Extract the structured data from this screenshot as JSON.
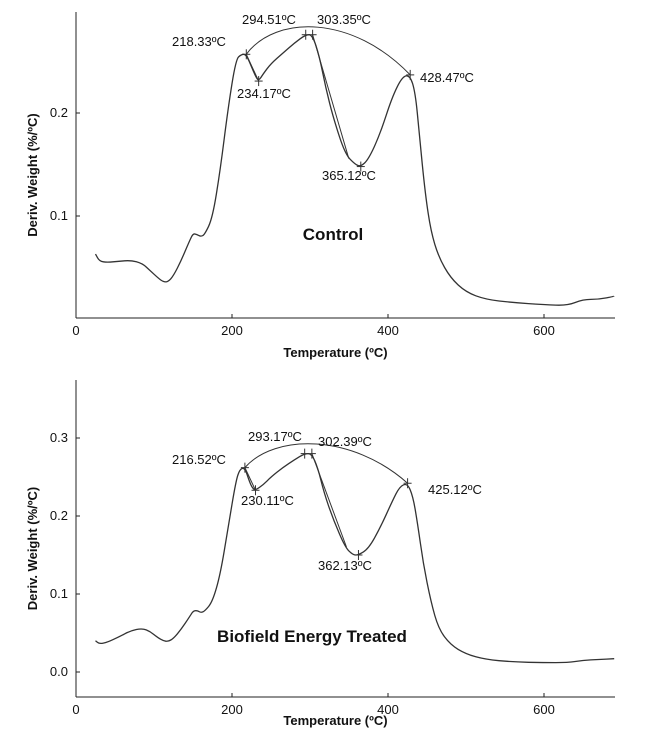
{
  "chart_data": [
    {
      "type": "line",
      "title": "Control",
      "xlabel": "Temperature (ºC)",
      "ylabel": "Deriv. Weight (%/ºC)",
      "xlim": [
        0,
        690
      ],
      "ylim": [
        0,
        0.3
      ],
      "xticks": [
        "0",
        "200",
        "400",
        "600"
      ],
      "yticks": [
        "0.1",
        "0.2"
      ],
      "ytick_values": [
        0.1,
        0.2
      ],
      "series": [
        {
          "x": [
            25,
            30,
            40,
            55,
            70,
            85,
            95,
            105,
            112,
            118,
            125,
            135,
            145,
            150,
            155,
            160,
            165,
            175,
            185,
            195,
            205,
            212,
            218,
            225,
            230,
            234,
            240,
            250,
            265,
            280,
            294.5,
            303,
            312,
            320,
            330,
            345,
            358,
            365,
            375,
            390,
            405,
            418,
            428,
            435,
            440,
            448,
            455,
            465,
            480,
            500,
            525,
            560,
            600,
            630,
            650,
            670,
            690
          ],
          "y": [
            0.063,
            0.056,
            0.055,
            0.056,
            0.057,
            0.054,
            0.047,
            0.04,
            0.036,
            0.036,
            0.042,
            0.057,
            0.075,
            0.083,
            0.082,
            0.08,
            0.082,
            0.098,
            0.145,
            0.205,
            0.252,
            0.257,
            0.257,
            0.245,
            0.236,
            0.231,
            0.238,
            0.248,
            0.258,
            0.268,
            0.276,
            0.276,
            0.255,
            0.225,
            0.195,
            0.16,
            0.15,
            0.148,
            0.155,
            0.18,
            0.215,
            0.235,
            0.237,
            0.22,
            0.18,
            0.12,
            0.085,
            0.06,
            0.04,
            0.026,
            0.019,
            0.016,
            0.014,
            0.013,
            0.019,
            0.019,
            0.022
          ]
        }
      ],
      "annotations": [
        {
          "text": "218.33ºC",
          "x": 218.33,
          "y": 0.257
        },
        {
          "text": "234.17ºC",
          "x": 234.17,
          "y": 0.231
        },
        {
          "text": "294.51ºC",
          "x": 294.51,
          "y": 0.276
        },
        {
          "text": "303.35ºC",
          "x": 303.35,
          "y": 0.276
        },
        {
          "text": "365.12ºC",
          "x": 365.12,
          "y": 0.148
        },
        {
          "text": "428.47ºC",
          "x": 428.47,
          "y": 0.237
        }
      ]
    },
    {
      "type": "line",
      "title": "Biofield Energy Treated",
      "xlabel": "Temperature (ºC)",
      "ylabel": "Deriv. Weight (%/ºC)",
      "xlim": [
        0,
        690
      ],
      "ylim": [
        -0.03,
        0.38
      ],
      "xticks": [
        "0",
        "200",
        "400",
        "600"
      ],
      "yticks": [
        "0.0",
        "0.1",
        "0.2",
        "0.3"
      ],
      "ytick_values": [
        0.0,
        0.1,
        0.2,
        0.3
      ],
      "series": [
        {
          "x": [
            25,
            30,
            40,
            55,
            70,
            85,
            95,
            105,
            112,
            118,
            125,
            135,
            145,
            150,
            155,
            160,
            165,
            175,
            185,
            195,
            205,
            210,
            216.5,
            222,
            226,
            230,
            240,
            250,
            265,
            280,
            293,
            302,
            310,
            318,
            330,
            345,
            355,
            362,
            375,
            390,
            405,
            415,
            425,
            432,
            438,
            445,
            455,
            465,
            480,
            500,
            525,
            560,
            600,
            630,
            650,
            670,
            690
          ],
          "y": [
            0.04,
            0.036,
            0.038,
            0.045,
            0.053,
            0.056,
            0.052,
            0.044,
            0.04,
            0.039,
            0.043,
            0.055,
            0.07,
            0.078,
            0.079,
            0.076,
            0.078,
            0.09,
            0.125,
            0.185,
            0.245,
            0.26,
            0.262,
            0.245,
            0.236,
            0.233,
            0.24,
            0.25,
            0.262,
            0.272,
            0.28,
            0.28,
            0.262,
            0.23,
            0.195,
            0.16,
            0.15,
            0.15,
            0.158,
            0.185,
            0.218,
            0.238,
            0.242,
            0.225,
            0.19,
            0.14,
            0.09,
            0.055,
            0.035,
            0.023,
            0.016,
            0.013,
            0.012,
            0.012,
            0.015,
            0.016,
            0.017
          ]
        }
      ],
      "annotations": [
        {
          "text": "216.52ºC",
          "x": 216.52,
          "y": 0.262
        },
        {
          "text": "230.11ºC",
          "x": 230.11,
          "y": 0.233
        },
        {
          "text": "293.17ºC",
          "x": 293.17,
          "y": 0.28
        },
        {
          "text": "302.39ºC",
          "x": 302.39,
          "y": 0.28
        },
        {
          "text": "362.13ºC",
          "x": 362.13,
          "y": 0.15
        },
        {
          "text": "425.12ºC",
          "x": 425.12,
          "y": 0.242
        }
      ]
    }
  ]
}
